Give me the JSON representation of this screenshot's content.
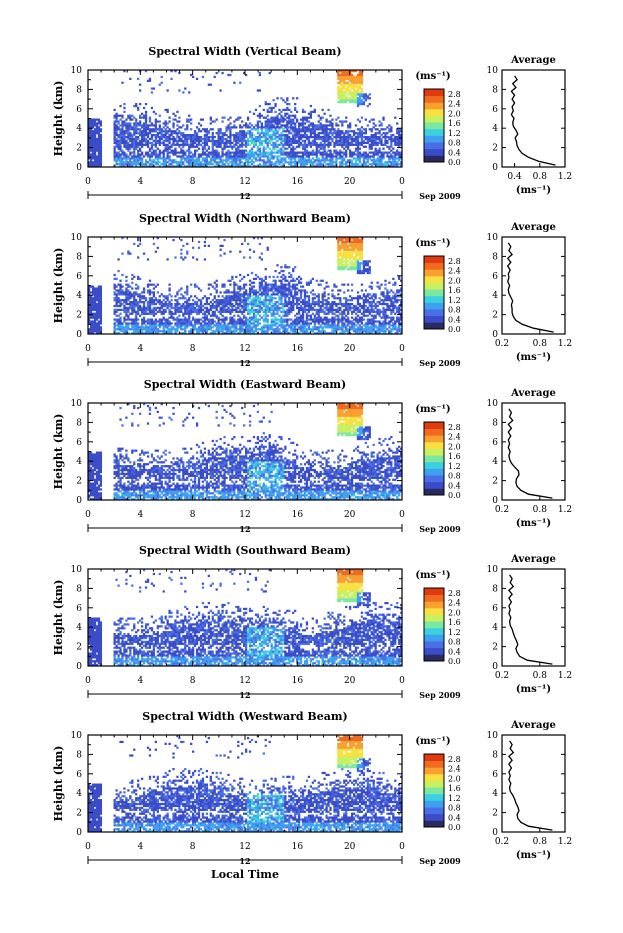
{
  "figure": {
    "xlabel": "Local Time",
    "date_label": "Sep 2009",
    "date_marker": "12",
    "colorbar_unit": "(ms⁻¹)",
    "colorbar_ticks": [
      "0.0",
      "0.4",
      "0.8",
      "1.2",
      "1.6",
      "2.0",
      "2.4",
      "2.8"
    ],
    "colormap": [
      "#2a2a60",
      "#3a4cc8",
      "#4a6ee6",
      "#3fa0f0",
      "#3ad0e0",
      "#7ae8a0",
      "#c8f060",
      "#f8e040",
      "#f8a030",
      "#f06a20",
      "#e03a10"
    ],
    "avg_title": "Average",
    "avg_xlabel": "(ms⁻¹)"
  },
  "chart_data": [
    {
      "type": "heatmap",
      "title": "Spectral Width (Vertical Beam)",
      "ylabel": "Height (km)",
      "xlabel": "Local Time",
      "x_ticks": [
        "0",
        "4",
        "8",
        "12",
        "16",
        "20",
        "0"
      ],
      "y_ticks": [
        "0",
        "2",
        "4",
        "6",
        "8",
        "10"
      ],
      "xlim": [
        0,
        24
      ],
      "ylim": [
        0,
        10
      ],
      "colorbar": {
        "unit": "(ms⁻¹)",
        "range": [
          0.0,
          2.8
        ]
      },
      "average_profile": {
        "title": "Average",
        "xlabel": "(ms⁻¹)",
        "x_ticks": [
          "0.4",
          "0.8",
          "1.2"
        ],
        "xlim": [
          0.2,
          1.2
        ],
        "height": [
          0.2,
          0.6,
          1.0,
          1.4,
          1.8,
          2.2,
          2.6,
          3.0,
          3.4,
          3.8,
          4.2,
          4.6,
          5.0,
          5.4,
          5.8,
          6.2,
          6.6,
          7.0,
          7.4,
          7.8,
          8.2,
          8.6,
          9.0,
          9.4
        ],
        "width": [
          1.05,
          0.78,
          0.62,
          0.52,
          0.47,
          0.44,
          0.43,
          0.41,
          0.45,
          0.42,
          0.38,
          0.37,
          0.39,
          0.35,
          0.38,
          0.36,
          0.4,
          0.36,
          0.4,
          0.35,
          0.42,
          0.37,
          0.44,
          0.4
        ]
      }
    },
    {
      "type": "heatmap",
      "title": "Spectral Width (Northward Beam)",
      "ylabel": "Height (km)",
      "xlabel": "Local Time",
      "x_ticks": [
        "0",
        "4",
        "8",
        "12",
        "16",
        "20",
        "0"
      ],
      "y_ticks": [
        "0",
        "2",
        "4",
        "6",
        "8",
        "10"
      ],
      "xlim": [
        0,
        24
      ],
      "ylim": [
        0,
        10
      ],
      "colorbar": {
        "unit": "(ms⁻¹)",
        "range": [
          0.0,
          2.8
        ]
      },
      "average_profile": {
        "title": "Average",
        "xlabel": "(ms⁻¹)",
        "x_ticks": [
          "0.2",
          "0.8",
          "1.2"
        ],
        "xlim": [
          0.2,
          1.2
        ],
        "height": [
          0.2,
          0.6,
          1.0,
          1.4,
          1.8,
          2.2,
          2.6,
          3.0,
          3.4,
          3.8,
          4.2,
          4.6,
          5.0,
          5.4,
          5.8,
          6.2,
          6.6,
          7.0,
          7.4,
          7.8,
          8.2,
          8.6,
          9.0,
          9.4
        ],
        "width": [
          1.02,
          0.7,
          0.52,
          0.42,
          0.38,
          0.36,
          0.36,
          0.35,
          0.37,
          0.34,
          0.31,
          0.3,
          0.32,
          0.29,
          0.31,
          0.3,
          0.33,
          0.29,
          0.34,
          0.29,
          0.36,
          0.31,
          0.34,
          0.3
        ]
      }
    },
    {
      "type": "heatmap",
      "title": "Spectral Width (Eastward Beam)",
      "ylabel": "Height (km)",
      "xlabel": "Local Time",
      "x_ticks": [
        "0",
        "4",
        "8",
        "12",
        "16",
        "20",
        "0"
      ],
      "y_ticks": [
        "0",
        "2",
        "4",
        "6",
        "8",
        "10"
      ],
      "xlim": [
        0,
        24
      ],
      "ylim": [
        0,
        10
      ],
      "colorbar": {
        "unit": "(ms⁻¹)",
        "range": [
          0.0,
          2.8
        ]
      },
      "average_profile": {
        "title": "Average",
        "xlabel": "(ms⁻¹)",
        "x_ticks": [
          "0.2",
          "0.8",
          "1.2"
        ],
        "xlim": [
          0.2,
          1.2
        ],
        "height": [
          0.2,
          0.6,
          1.0,
          1.4,
          1.8,
          2.2,
          2.6,
          3.0,
          3.4,
          3.8,
          4.2,
          4.6,
          5.0,
          5.4,
          5.8,
          6.2,
          6.6,
          7.0,
          7.4,
          7.8,
          8.2,
          8.6,
          9.0,
          9.4
        ],
        "width": [
          1.0,
          0.62,
          0.5,
          0.44,
          0.42,
          0.43,
          0.47,
          0.46,
          0.4,
          0.35,
          0.32,
          0.31,
          0.33,
          0.3,
          0.32,
          0.3,
          0.34,
          0.3,
          0.35,
          0.3,
          0.37,
          0.32,
          0.35,
          0.31
        ]
      }
    },
    {
      "type": "heatmap",
      "title": "Spectral Width (Southward Beam)",
      "ylabel": "Height (km)",
      "xlabel": "Local Time",
      "x_ticks": [
        "0",
        "4",
        "8",
        "12",
        "16",
        "20",
        "0"
      ],
      "y_ticks": [
        "0",
        "2",
        "4",
        "6",
        "8",
        "10"
      ],
      "xlim": [
        0,
        24
      ],
      "ylim": [
        0,
        10
      ],
      "colorbar": {
        "unit": "(ms⁻¹)",
        "range": [
          0.0,
          2.8
        ]
      },
      "average_profile": {
        "title": "Average",
        "xlabel": "(ms⁻¹)",
        "x_ticks": [
          "0.2",
          "0.8",
          "1.2"
        ],
        "xlim": [
          0.2,
          1.2
        ],
        "height": [
          0.2,
          0.6,
          1.0,
          1.4,
          1.8,
          2.2,
          2.6,
          3.0,
          3.4,
          3.8,
          4.2,
          4.6,
          5.0,
          5.4,
          5.8,
          6.2,
          6.6,
          7.0,
          7.4,
          7.8,
          8.2,
          8.6,
          9.0,
          9.4
        ],
        "width": [
          1.0,
          0.6,
          0.48,
          0.44,
          0.42,
          0.45,
          0.43,
          0.4,
          0.38,
          0.36,
          0.33,
          0.32,
          0.34,
          0.31,
          0.33,
          0.31,
          0.35,
          0.31,
          0.36,
          0.31,
          0.38,
          0.33,
          0.36,
          0.32
        ]
      }
    },
    {
      "type": "heatmap",
      "title": "Spectral Width (Westward Beam)",
      "ylabel": "Height (km)",
      "xlabel": "Local Time",
      "x_ticks": [
        "0",
        "4",
        "8",
        "12",
        "16",
        "20",
        "0"
      ],
      "y_ticks": [
        "0",
        "2",
        "4",
        "6",
        "8",
        "10"
      ],
      "xlim": [
        0,
        24
      ],
      "ylim": [
        0,
        10
      ],
      "colorbar": {
        "unit": "(ms⁻¹)",
        "range": [
          0.0,
          2.8
        ]
      },
      "average_profile": {
        "title": "Average",
        "xlabel": "(ms⁻¹)",
        "x_ticks": [
          "0.2",
          "0.8",
          "1.2"
        ],
        "xlim": [
          0.2,
          1.2
        ],
        "height": [
          0.2,
          0.6,
          1.0,
          1.4,
          1.8,
          2.2,
          2.6,
          3.0,
          3.4,
          3.8,
          4.2,
          4.6,
          5.0,
          5.4,
          5.8,
          6.2,
          6.6,
          7.0,
          7.4,
          7.8,
          8.2,
          8.6,
          9.0,
          9.4
        ],
        "width": [
          1.0,
          0.62,
          0.5,
          0.45,
          0.44,
          0.47,
          0.45,
          0.42,
          0.4,
          0.37,
          0.33,
          0.32,
          0.34,
          0.31,
          0.33,
          0.31,
          0.35,
          0.31,
          0.36,
          0.31,
          0.38,
          0.33,
          0.36,
          0.32
        ]
      }
    }
  ]
}
